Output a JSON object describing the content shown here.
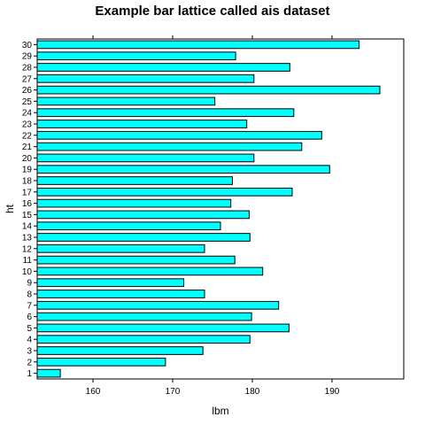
{
  "chart_data": {
    "type": "bar",
    "orientation": "horizontal",
    "title": "Example bar lattice called ais dataset",
    "xlabel": "lbm",
    "ylabel": "ht",
    "xlim": [
      153.0,
      199.0
    ],
    "x_ticks": [
      160,
      170,
      180,
      190
    ],
    "categories": [
      "1",
      "2",
      "3",
      "4",
      "5",
      "6",
      "7",
      "8",
      "9",
      "10",
      "11",
      "12",
      "13",
      "14",
      "15",
      "16",
      "17",
      "18",
      "19",
      "20",
      "21",
      "22",
      "23",
      "24",
      "25",
      "26",
      "27",
      "28",
      "29",
      "30"
    ],
    "values": [
      155.9,
      169.1,
      173.8,
      179.7,
      184.6,
      179.9,
      183.3,
      174.0,
      171.4,
      181.3,
      177.8,
      174.0,
      179.7,
      176.0,
      179.6,
      177.3,
      185.0,
      177.5,
      189.7,
      180.2,
      186.2,
      188.7,
      179.3,
      185.2,
      175.3,
      196.0,
      180.2,
      184.7,
      177.9,
      193.4
    ],
    "colors": {
      "bar_fill": "#00ffff",
      "bar_stroke": "#000000",
      "axis": "#000000"
    },
    "grid": false,
    "legend": "none"
  }
}
